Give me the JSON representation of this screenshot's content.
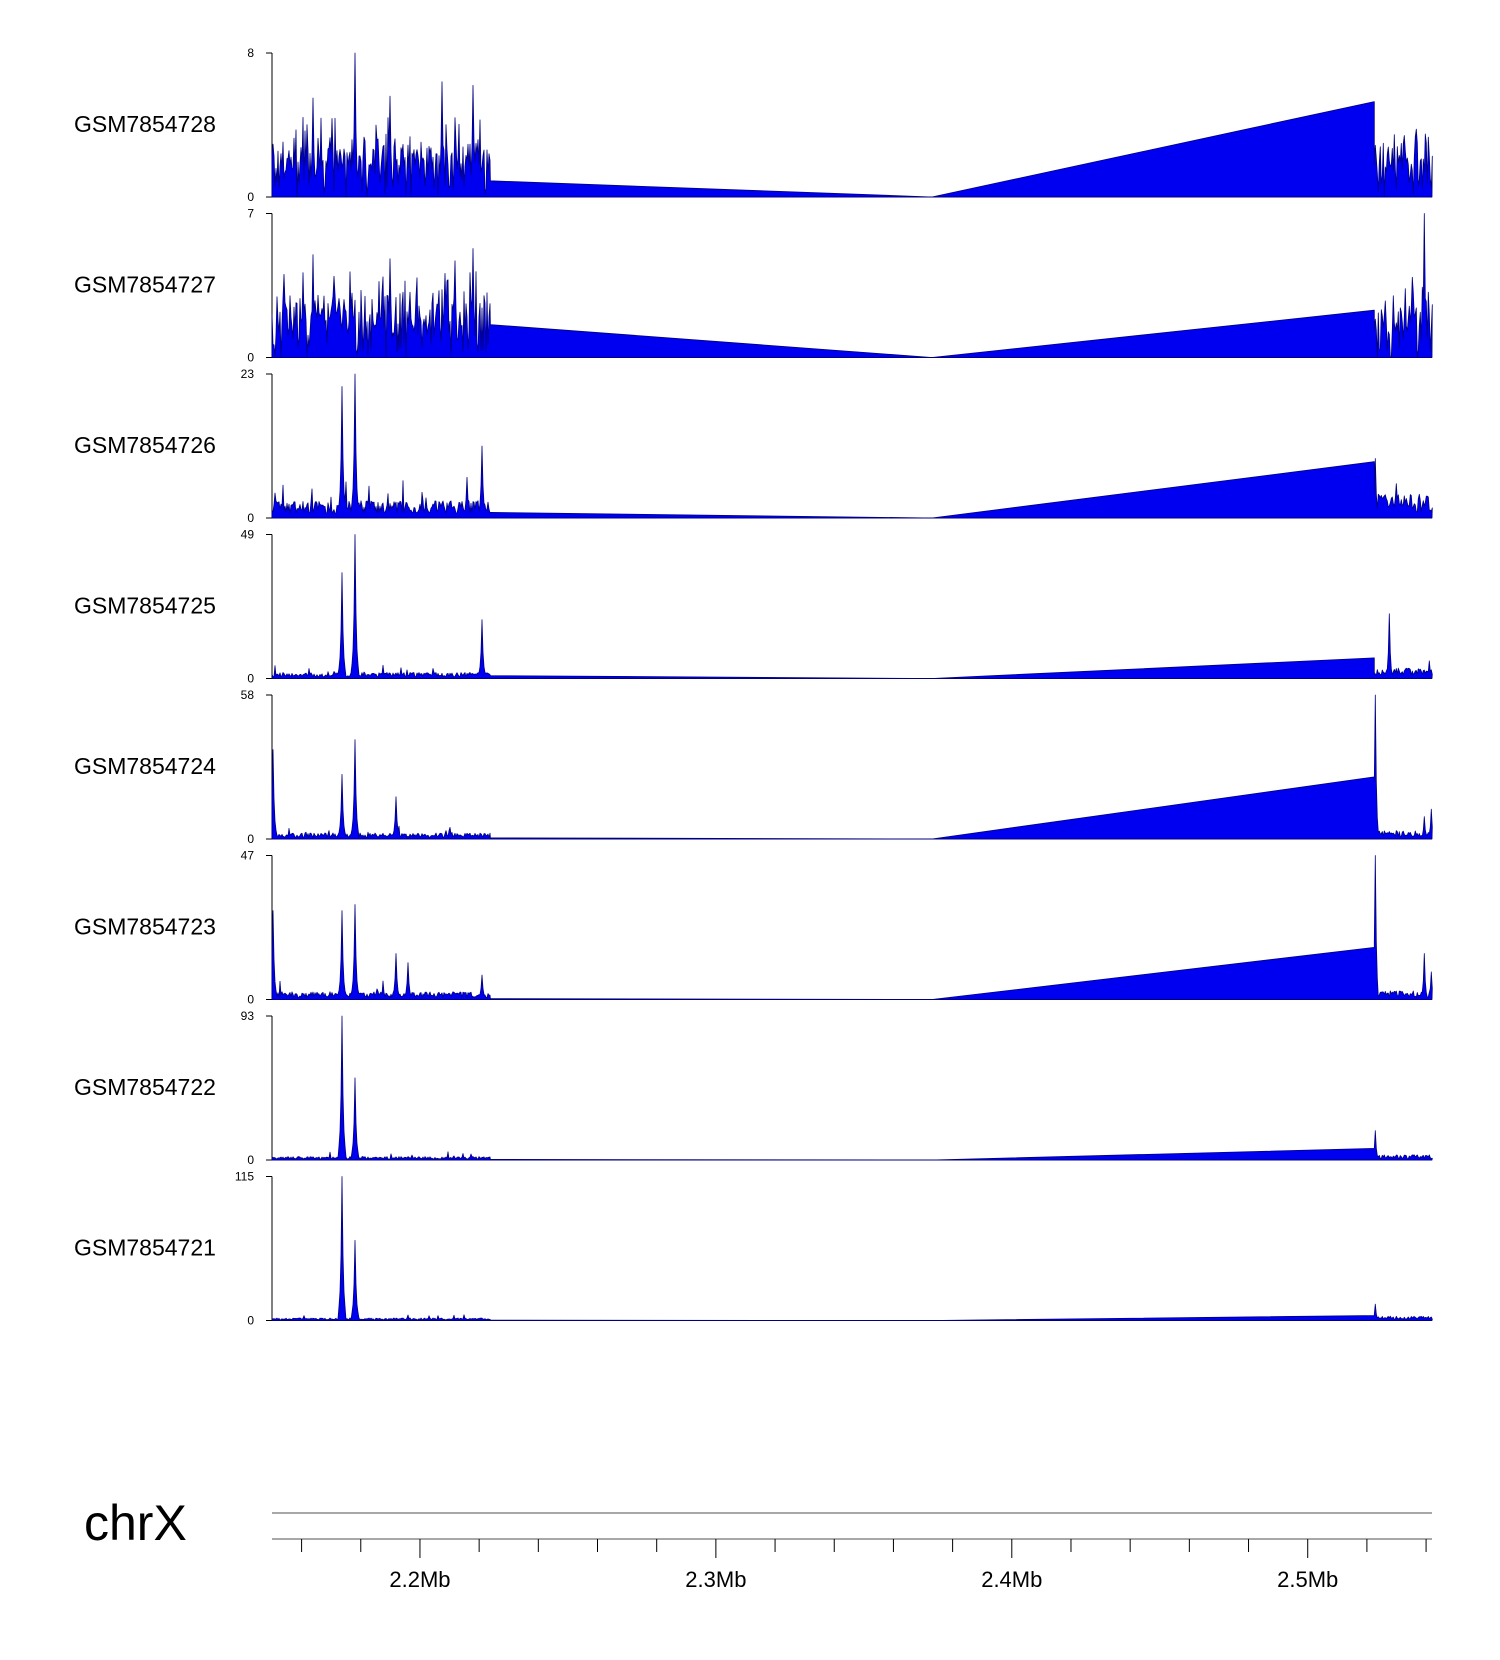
{
  "chart_data": {
    "type": "area",
    "title": "",
    "chromosome": "chrX",
    "x_range_mb": [
      2.15,
      2.542
    ],
    "data_blocks_mb": [
      [
        2.15,
        2.2238
      ],
      [
        2.5225,
        2.542
      ]
    ],
    "gap_interpolation_mb": [
      2.2238,
      2.373,
      2.5225
    ],
    "x_ticks": [
      "2.2Mb",
      "2.3Mb",
      "2.4Mb",
      "2.5Mb"
    ],
    "x_tick_values_mb": [
      2.2,
      2.3,
      2.4,
      2.5
    ],
    "minor_tick_step_mb": 0.02,
    "fill_color": "#0000f0",
    "line_color": "#000080",
    "series": [
      {
        "name": "GSM7854728",
        "ymin": 0,
        "ymax": 8,
        "ymin_label": "0",
        "ymax_label": "8",
        "profile": "dense",
        "noise": 0.38,
        "peaks": [
          [
            2.1782,
            8
          ],
          [
            2.218,
            6.2
          ],
          [
            2.2073,
            6.4
          ],
          [
            2.164,
            5.5
          ],
          [
            2.19,
            5.6
          ]
        ],
        "gap_left": 0.9,
        "gap_right": 5.3,
        "right_noise": 0.3,
        "right_peaks": [
          [
            2.5398,
            3.5
          ],
          [
            2.5285,
            2.7
          ]
        ]
      },
      {
        "name": "GSM7854727",
        "ymin": 0,
        "ymax": 7,
        "ymin_label": "0",
        "ymax_label": "7",
        "profile": "dense",
        "noise": 0.42,
        "peaks": [
          [
            2.218,
            5.3
          ],
          [
            2.164,
            5.0
          ],
          [
            2.19,
            4.8
          ],
          [
            2.212,
            4.7
          ]
        ],
        "gap_left": 1.6,
        "gap_right": 2.3,
        "right_noise": 0.36,
        "right_peaks": [
          [
            2.5395,
            7
          ],
          [
            2.5355,
            3.9
          ]
        ]
      },
      {
        "name": "GSM7854726",
        "ymin": 0,
        "ymax": 23,
        "ymin_label": "0",
        "ymax_label": "23",
        "profile": "sparse",
        "noise": 0.1,
        "peaks": [
          [
            2.1735,
            21
          ],
          [
            2.1782,
            23
          ],
          [
            2.221,
            11.5
          ],
          [
            2.216,
            6.5
          ],
          [
            2.151,
            4
          ]
        ],
        "gap_left": 0.9,
        "gap_right": 9.0,
        "right_noise": 0.14,
        "right_peaks": [
          [
            2.523,
            9.5
          ],
          [
            2.53,
            5.5
          ]
        ]
      },
      {
        "name": "GSM7854725",
        "ymin": 0,
        "ymax": 49,
        "ymin_label": "0",
        "ymax_label": "49",
        "profile": "sparse",
        "noise": 0.035,
        "peaks": [
          [
            2.1735,
            36
          ],
          [
            2.1782,
            49
          ],
          [
            2.221,
            20
          ]
        ],
        "gap_left": 1.0,
        "gap_right": 7.0,
        "right_noise": 0.06,
        "right_peaks": [
          [
            2.5275,
            22
          ],
          [
            2.541,
            6
          ]
        ]
      },
      {
        "name": "GSM7854724",
        "ymin": 0,
        "ymax": 58,
        "ymin_label": "0",
        "ymax_label": "58",
        "profile": "sparse",
        "noise": 0.035,
        "peaks": [
          [
            2.1505,
            36
          ],
          [
            2.1735,
            26
          ],
          [
            2.1782,
            40
          ],
          [
            2.192,
            17
          ]
        ],
        "gap_left": 0.5,
        "gap_right": 25.0,
        "right_noise": 0.05,
        "right_peaks": [
          [
            2.5228,
            58
          ],
          [
            2.5395,
            9
          ],
          [
            2.5418,
            12
          ]
        ]
      },
      {
        "name": "GSM7854723",
        "ymin": 0,
        "ymax": 47,
        "ymin_label": "0",
        "ymax_label": "47",
        "profile": "sparse",
        "noise": 0.045,
        "peaks": [
          [
            2.1505,
            29
          ],
          [
            2.1735,
            29
          ],
          [
            2.1782,
            31
          ],
          [
            2.192,
            15
          ],
          [
            2.196,
            12
          ],
          [
            2.221,
            8
          ]
        ],
        "gap_left": 0.3,
        "gap_right": 17.0,
        "right_noise": 0.05,
        "right_peaks": [
          [
            2.5228,
            47
          ],
          [
            2.5395,
            15
          ],
          [
            2.5418,
            9
          ]
        ]
      },
      {
        "name": "GSM7854722",
        "ymin": 0,
        "ymax": 93,
        "ymin_label": "0",
        "ymax_label": "93",
        "profile": "sparse",
        "noise": 0.02,
        "peaks": [
          [
            2.1735,
            93
          ],
          [
            2.1782,
            53
          ]
        ],
        "gap_left": 0.4,
        "gap_right": 7.5,
        "right_noise": 0.03,
        "right_peaks": [
          [
            2.5228,
            19
          ]
        ]
      },
      {
        "name": "GSM7854721",
        "ymin": 0,
        "ymax": 115,
        "ymin_label": "0",
        "ymax_label": "115",
        "profile": "sparse",
        "noise": 0.015,
        "peaks": [
          [
            2.1735,
            115
          ],
          [
            2.1782,
            64
          ]
        ],
        "gap_left": 0.3,
        "gap_right": 4.0,
        "right_noise": 0.025,
        "right_peaks": [
          [
            2.5228,
            13
          ]
        ]
      }
    ]
  }
}
